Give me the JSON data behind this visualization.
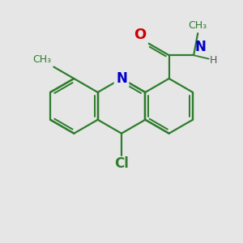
{
  "background_color": "#e6e6e6",
  "bond_color": "#2d7d2d",
  "bond_width": 1.6,
  "atom_colors": {
    "N": "#0000cc",
    "O": "#cc0000",
    "Cl": "#2d7d2d",
    "H": "#555555",
    "CH3": "#2d7d2d"
  },
  "font_size_atom": 10,
  "font_size_label": 9,
  "font_size_small": 8
}
